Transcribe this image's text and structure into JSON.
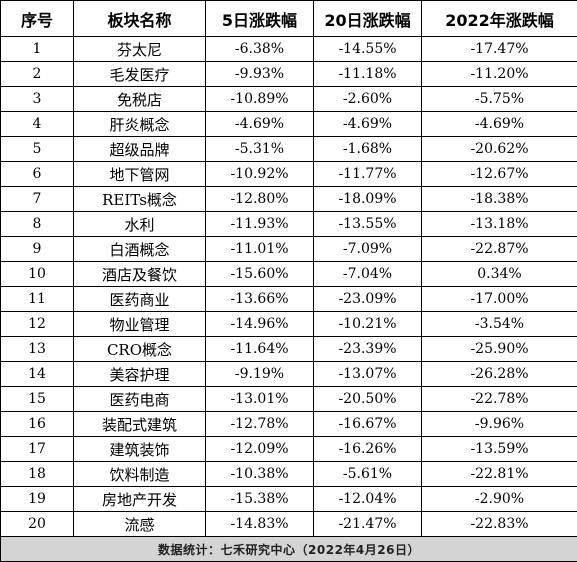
{
  "headers": [
    "序号",
    "板块名称",
    "5日涨跌幅",
    "20日涨跌幅",
    "2022年涨跌幅"
  ],
  "rows": [
    {
      "no": "1",
      "name": "芬太尼",
      "d5": "-6.38%",
      "d20": "-14.55%",
      "ytd": "-17.47%"
    },
    {
      "no": "2",
      "name": "毛发医疗",
      "d5": "-9.93%",
      "d20": "-11.18%",
      "ytd": "-11.20%"
    },
    {
      "no": "3",
      "name": "免税店",
      "d5": "-10.89%",
      "d20": "-2.60%",
      "ytd": "-5.75%"
    },
    {
      "no": "4",
      "name": "肝炎概念",
      "d5": "-4.69%",
      "d20": "-4.69%",
      "ytd": "-4.69%"
    },
    {
      "no": "5",
      "name": "超级品牌",
      "d5": "-5.31%",
      "d20": "-1.68%",
      "ytd": "-20.62%"
    },
    {
      "no": "6",
      "name": "地下管网",
      "d5": "-10.92%",
      "d20": "-11.77%",
      "ytd": "-12.67%"
    },
    {
      "no": "7",
      "name": "REITs概念",
      "d5": "-12.80%",
      "d20": "-18.09%",
      "ytd": "-18.38%"
    },
    {
      "no": "8",
      "name": "水利",
      "d5": "-11.93%",
      "d20": "-13.55%",
      "ytd": "-13.18%"
    },
    {
      "no": "9",
      "name": "白酒概念",
      "d5": "-11.01%",
      "d20": "-7.09%",
      "ytd": "-22.87%"
    },
    {
      "no": "10",
      "name": "酒店及餐饮",
      "d5": "-15.60%",
      "d20": "-7.04%",
      "ytd": "0.34%"
    },
    {
      "no": "11",
      "name": "医药商业",
      "d5": "-13.66%",
      "d20": "-23.09%",
      "ytd": "-17.00%"
    },
    {
      "no": "12",
      "name": "物业管理",
      "d5": "-14.96%",
      "d20": "-10.21%",
      "ytd": "-3.54%"
    },
    {
      "no": "13",
      "name": "CRO概念",
      "d5": "-11.64%",
      "d20": "-23.39%",
      "ytd": "-25.90%"
    },
    {
      "no": "14",
      "name": "美容护理",
      "d5": "-9.19%",
      "d20": "-13.07%",
      "ytd": "-26.28%"
    },
    {
      "no": "15",
      "name": "医药电商",
      "d5": "-13.01%",
      "d20": "-20.50%",
      "ytd": "-22.78%"
    },
    {
      "no": "16",
      "name": "装配式建筑",
      "d5": "-12.78%",
      "d20": "-16.67%",
      "ytd": "-9.96%"
    },
    {
      "no": "17",
      "name": "建筑装饰",
      "d5": "-12.09%",
      "d20": "-16.26%",
      "ytd": "-13.59%"
    },
    {
      "no": "18",
      "name": "饮料制造",
      "d5": "-10.38%",
      "d20": "-5.61%",
      "ytd": "-22.81%"
    },
    {
      "no": "19",
      "name": "房地产开发",
      "d5": "-15.38%",
      "d20": "-12.04%",
      "ytd": "-2.90%"
    },
    {
      "no": "20",
      "name": "流感",
      "d5": "-14.83%",
      "d20": "-21.47%",
      "ytd": "-22.83%"
    }
  ],
  "footer": "数据统计：七禾研究中心（2022年4月26日）"
}
